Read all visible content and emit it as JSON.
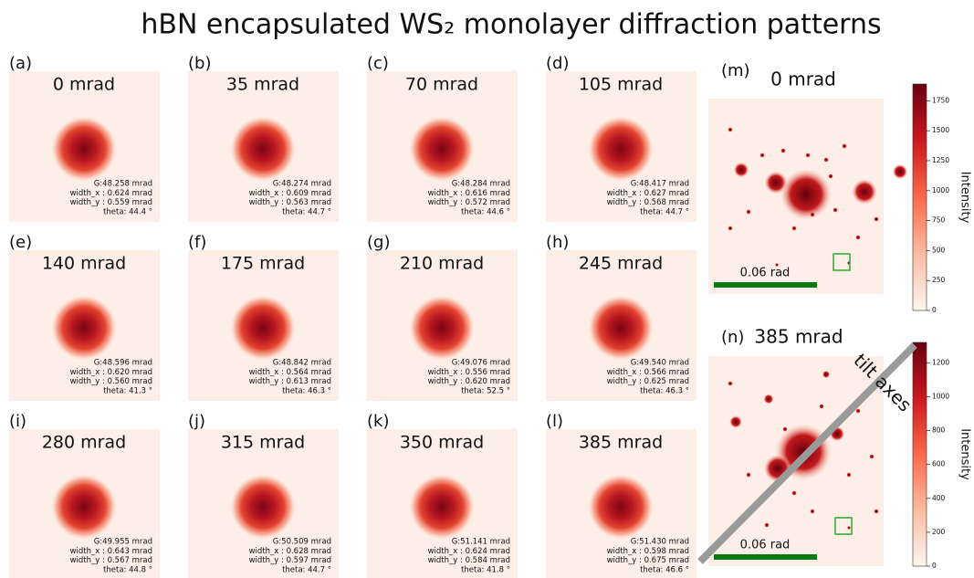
{
  "title": "hBN encapsulated WS₂ monolayer diffraction patterns",
  "panels": [
    {
      "label": "(a)",
      "title": "0 mrad",
      "g": "G:48.258 mrad",
      "width_x": "width_x : 0.624 mrad",
      "width_y": "width_y : 0.559 mrad",
      "theta": "theta: 44.4 °"
    },
    {
      "label": "(b)",
      "title": "35 mrad",
      "g": "G:48.274 mrad",
      "width_x": "width_x : 0.609 mrad",
      "width_y": "width_y : 0.563 mrad",
      "theta": "theta: 44.7 °"
    },
    {
      "label": "(c)",
      "title": "70 mrad",
      "g": "G:48.284 mrad",
      "width_x": "width_x : 0.616 mrad",
      "width_y": "width_y : 0.572 mrad",
      "theta": "theta: 44.6 °"
    },
    {
      "label": "(d)",
      "title": "105 mrad",
      "g": "G:48.417 mrad",
      "width_x": "width_x : 0.627 mrad",
      "width_y": "width_y : 0.568 mrad",
      "theta": "theta: 44.7 °"
    },
    {
      "label": "(e)",
      "title": "140 mrad",
      "g": "G:48.596 mrad",
      "width_x": "width_x : 0.620 mrad",
      "width_y": "width_y : 0.560 mrad",
      "theta": "theta: 41.3 °"
    },
    {
      "label": "(f)",
      "title": "175 mrad",
      "g": "G:48.842 mrad",
      "width_x": "width_x : 0.564 mrad",
      "width_y": "width_y : 0.613 mrad",
      "theta": "theta: 46.3 °"
    },
    {
      "label": "(g)",
      "title": "210 mrad",
      "g": "G:49.076 mrad",
      "width_x": "width_x : 0.556 mrad",
      "width_y": "width_y : 0.620 mrad",
      "theta": "theta: 52.5 °"
    },
    {
      "label": "(h)",
      "title": "245 mrad",
      "g": "G:49.540 mrad",
      "width_x": "width_x : 0.566 mrad",
      "width_y": "width_y : 0.625 mrad",
      "theta": "theta: 46.3 °"
    },
    {
      "label": "(i)",
      "title": "280 mrad",
      "g": "G:49.955 mrad",
      "width_x": "width_x : 0.643 mrad",
      "width_y": "width_y : 0.567 mrad",
      "theta": "theta: 44.8 °"
    },
    {
      "label": "(j)",
      "title": "315 mrad",
      "g": "G:50.509 mrad",
      "width_x": "width_x : 0.628 mrad",
      "width_y": "width_y : 0.597 mrad",
      "theta": "theta: 44.7 °"
    },
    {
      "label": "(k)",
      "title": "350 mrad",
      "g": "G:51.141 mrad",
      "width_x": "width_x : 0.624 mrad",
      "width_y": "width_y : 0.584 mrad",
      "theta": "theta: 41.8 °"
    },
    {
      "label": "(l)",
      "title": "385 mrad",
      "g": "G:51.430 mrad",
      "width_x": "width_x : 0.598 mrad",
      "width_y": "width_y : 0.675 mrad",
      "theta": "theta: 46.6 °"
    }
  ],
  "large_panels": [
    {
      "label": "(m)",
      "title": "0 mrad",
      "scale_label": "0.06 rad",
      "colorbar_label": "Intensity",
      "clim": [
        0,
        1890
      ],
      "cticks": [
        0,
        250,
        500,
        750,
        1000,
        1250,
        1500,
        1750
      ]
    },
    {
      "label": "(n)",
      "title": "385 mrad",
      "scale_label": "0.06 rad",
      "colorbar_label": "Intensity",
      "clim": [
        0,
        1320
      ],
      "cticks": [
        0,
        200,
        400,
        600,
        800,
        1000,
        1200
      ]
    }
  ],
  "tilt_label": "tilt axes"
}
